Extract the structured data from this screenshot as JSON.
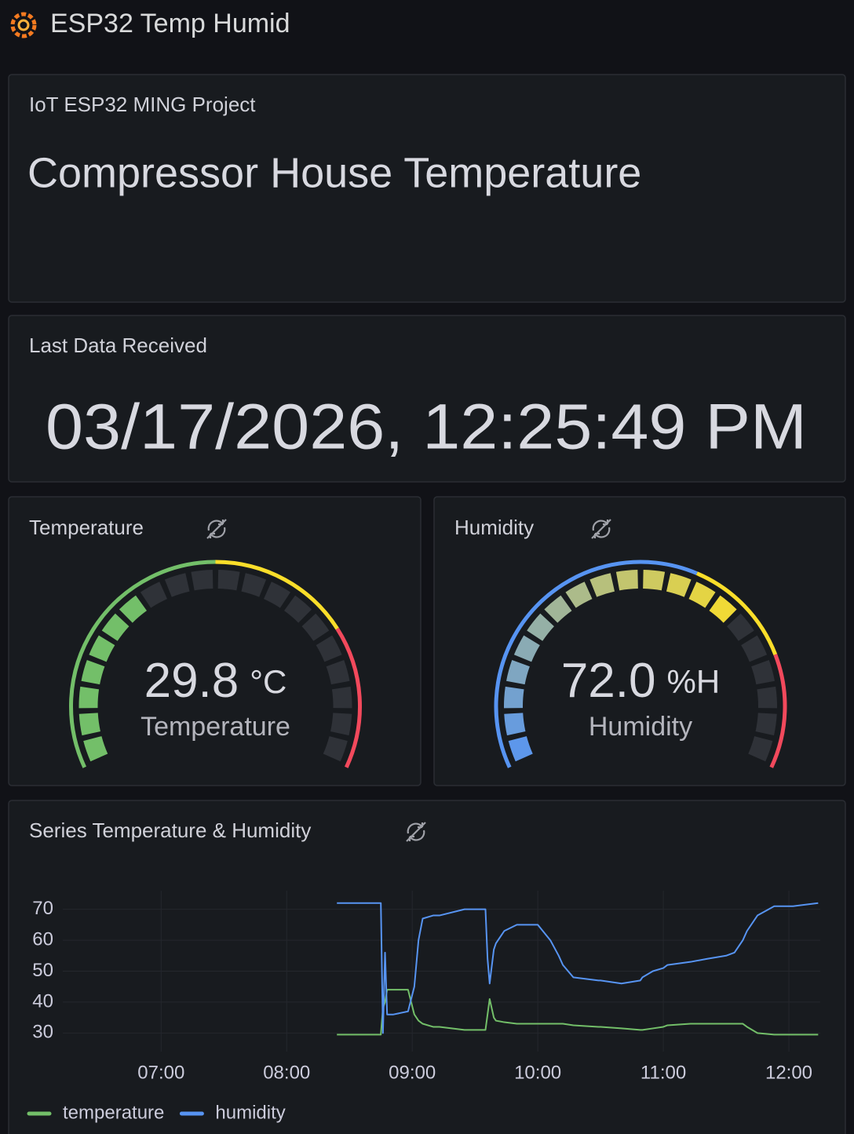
{
  "header": {
    "title": "ESP32 Temp Humid"
  },
  "text_panel": {
    "title": "IoT ESP32 MING Project",
    "content": "Compressor House Temperature"
  },
  "stat_panel": {
    "title": "Last Data Received",
    "value": "03/17/2026, 12:25:49 PM"
  },
  "chart_data": [
    {
      "type": "gauge",
      "title": "Temperature",
      "value": 29.8,
      "unit": "°C",
      "label": "Temperature",
      "min": 0,
      "max": 80,
      "thresholds": [
        {
          "value": 0,
          "color": "#73bf69"
        },
        {
          "value": 40,
          "color": "#fade2a"
        },
        {
          "value": 60,
          "color": "#f2495c"
        }
      ]
    },
    {
      "type": "gauge",
      "title": "Humidity",
      "value": 72,
      "value_label": "72.0",
      "unit": "%H",
      "label": "Humidity",
      "min": 0,
      "max": 100,
      "thresholds": [
        {
          "value": 0,
          "color": "#5794f2"
        },
        {
          "value": 60,
          "color": "#fade2a"
        },
        {
          "value": 80,
          "color": "#f2495c"
        }
      ]
    },
    {
      "type": "line",
      "title": "Series Temperature & Humidity",
      "x": [
        "08:24",
        "08:45",
        "08:46",
        "08:47",
        "08:48",
        "08:50",
        "08:51",
        "08:58",
        "09:01",
        "09:03",
        "09:05",
        "09:10",
        "09:13",
        "09:25",
        "09:30",
        "09:35",
        "09:36",
        "09:37",
        "09:39",
        "09:40",
        "09:44",
        "09:50",
        "09:51",
        "10:00",
        "10:06",
        "10:10",
        "10:12",
        "10:17",
        "10:29",
        "10:30",
        "10:40",
        "10:49",
        "10:50",
        "10:55",
        "11:00",
        "11:02",
        "11:13",
        "11:21",
        "11:30",
        "11:34",
        "11:38",
        "11:40",
        "11:45",
        "11:53",
        "12:02",
        "12:14"
      ],
      "series": [
        {
          "name": "temperature",
          "color": "#73bf69",
          "values": [
            29.5,
            29.5,
            38,
            40,
            44,
            44,
            44,
            44,
            36,
            34,
            33,
            32,
            32,
            31,
            31,
            31,
            36,
            41,
            35,
            34,
            33.5,
            33,
            33,
            33,
            33,
            33,
            33,
            32.5,
            32,
            32,
            31.5,
            31,
            31,
            31.5,
            32,
            32.5,
            33,
            33,
            33,
            33,
            33,
            32,
            30,
            29.5,
            29.5,
            29.5
          ]
        },
        {
          "name": "humidity",
          "color": "#5794f2",
          "values": [
            72,
            72,
            30,
            56,
            36,
            36,
            36,
            37,
            45,
            60,
            67,
            68,
            68,
            70,
            70,
            70,
            54,
            46,
            57,
            59,
            63,
            65,
            65,
            65,
            60,
            55,
            52,
            48,
            47,
            47,
            46,
            47,
            48,
            50,
            51,
            52,
            53,
            54,
            55,
            56,
            60,
            63,
            68,
            71,
            71,
            72
          ]
        }
      ],
      "xlim": [
        "06:13",
        "12:15"
      ],
      "xticks": [
        "07:00",
        "08:00",
        "09:00",
        "10:00",
        "11:00",
        "12:00"
      ],
      "ylim": [
        24,
        76
      ],
      "yticks": [
        30,
        40,
        50,
        60,
        70
      ],
      "grid": true,
      "legend": "bottom"
    }
  ]
}
